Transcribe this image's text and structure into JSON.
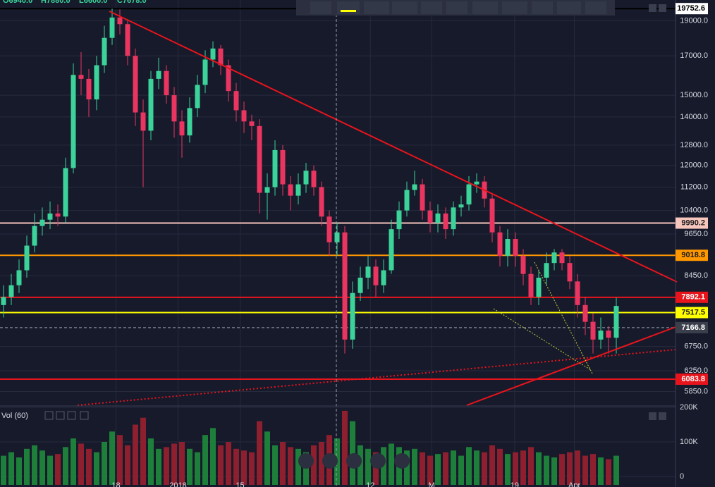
{
  "chart_data": {
    "type": "candlestick",
    "ohlc_legend": [
      "O6940.0",
      "H7880.0",
      "L6600.0",
      "C7678.0"
    ],
    "volume_label": "Vol (60)",
    "up_color": "#3cd39a",
    "down_color": "#ea3560",
    "volume_up_color": "#1d7f3a",
    "volume_down_color": "#8e1f2e",
    "ylim": [
      5600,
      20300
    ],
    "log_scale": true,
    "grid": true,
    "yticks": [
      {
        "value": 5850,
        "label": "5850.0"
      },
      {
        "value": 6250,
        "label": "6250.0"
      },
      {
        "value": 6750,
        "label": "6750.0"
      },
      {
        "value": 8450,
        "label": "8450.0"
      },
      {
        "value": 9650,
        "label": "9650.0"
      },
      {
        "value": 10400,
        "label": "10400.0"
      },
      {
        "value": 11200,
        "label": "11200.0"
      },
      {
        "value": 12000,
        "label": "12000.0"
      },
      {
        "value": 12800,
        "label": "12800.0"
      },
      {
        "value": 14000,
        "label": "14000.0"
      },
      {
        "value": 15000,
        "label": "15000.0"
      },
      {
        "value": 17000,
        "label": "17000.0"
      },
      {
        "value": 19000,
        "label": "19000.0"
      }
    ],
    "levels": [
      {
        "value": 19752.6,
        "color": "#000000",
        "text_color": "#000000",
        "label_bg": "#ffffff"
      },
      {
        "value": 9990.2,
        "color": "#f6c6bc",
        "text_color": "#1a1a1a",
        "label_bg": "#f6c6bc"
      },
      {
        "value": 9018.8,
        "color": "#ff9800",
        "text_color": "#1a1a1a",
        "label_bg": "#ff9800"
      },
      {
        "value": 7892.1,
        "color": "#e8141c",
        "text_color": "#ffffff",
        "label_bg": "#e8141c"
      },
      {
        "value": 7517.5,
        "color": "#ffff00",
        "text_color": "#1a1a1a",
        "label_bg": "#ffff00"
      },
      {
        "value": 7166.8,
        "color": "#9aa0ad",
        "text_color": "#ffffff",
        "label_bg": "#3b3f4c",
        "dashed": true
      },
      {
        "value": 6083.8,
        "color": "#e8141c",
        "text_color": "#ffffff",
        "label_bg": "#e8141c"
      }
    ],
    "xticks": [
      {
        "value": 14.5,
        "label": "18"
      },
      {
        "value": 22.5,
        "label": "2018"
      },
      {
        "value": 30.5,
        "label": "15"
      },
      {
        "value": 47.3,
        "label": "12"
      },
      {
        "value": 55.2,
        "label": "M"
      },
      {
        "value": 65.9,
        "label": "19"
      },
      {
        "value": 73.6,
        "label": "Apr"
      }
    ],
    "open": [
      7700,
      7900,
      8200,
      8600,
      9300,
      9900,
      10100,
      10300,
      10200,
      11900,
      16000,
      15800,
      14800,
      16500,
      18000,
      19200,
      18800,
      17000,
      14200,
      13400,
      15800,
      16200,
      15000,
      13800,
      13200,
      14400,
      15500,
      16800,
      17400,
      16500,
      15200,
      14300,
      13800,
      13600,
      11000,
      11200,
      12600,
      11300,
      10900,
      11300,
      11800,
      11200,
      10200,
      9400,
      9700,
      6900,
      8000,
      8400,
      8700,
      8200,
      8600,
      9800,
      10400,
      11100,
      11300,
      10400,
      10000,
      10300,
      9800,
      10500,
      10600,
      11300,
      11400,
      10800,
      9700,
      9000,
      9500,
      9000,
      8500,
      7900,
      8400,
      8800,
      9100,
      8800,
      8300,
      7700,
      7300,
      6900,
      7100,
      6940
    ],
    "high": [
      8200,
      8500,
      8900,
      9600,
      10300,
      10500,
      10700,
      10600,
      12300,
      16600,
      17200,
      16300,
      17000,
      18700,
      19753,
      19700,
      19000,
      17400,
      14800,
      16200,
      16900,
      16500,
      15400,
      14300,
      14900,
      16000,
      17300,
      17800,
      17600,
      16800,
      15600,
      14700,
      14100,
      13900,
      11700,
      13000,
      12800,
      11600,
      11700,
      12100,
      12000,
      11400,
      10400,
      10000,
      9900,
      8300,
      8700,
      9000,
      8900,
      8900,
      10100,
      10700,
      11400,
      11800,
      11500,
      10700,
      10600,
      10500,
      10700,
      10900,
      11600,
      11700,
      11600,
      11000,
      9900,
      9800,
      9700,
      9200,
      8700,
      8600,
      9100,
      9200,
      9200,
      9000,
      8500,
      7900,
      7500,
      7400,
      7200,
      7880
    ],
    "low": [
      7400,
      7700,
      8000,
      8400,
      9100,
      9600,
      9800,
      9900,
      10000,
      11700,
      15000,
      14000,
      14300,
      16100,
      17600,
      18200,
      16500,
      13600,
      11200,
      13000,
      15300,
      14600,
      13100,
      12300,
      12900,
      14000,
      15100,
      16400,
      16000,
      14700,
      13800,
      13300,
      13000,
      10300,
      10100,
      10900,
      10900,
      10400,
      10600,
      11000,
      10900,
      9900,
      9000,
      9000,
      6600,
      6700,
      7800,
      8100,
      7900,
      8000,
      8500,
      9500,
      10200,
      10900,
      10100,
      9700,
      9700,
      9500,
      9600,
      10200,
      10400,
      11000,
      10500,
      9400,
      8700,
      8700,
      8700,
      8200,
      7700,
      7700,
      8200,
      8600,
      8600,
      8100,
      7400,
      7000,
      6600,
      6700,
      6600,
      6600
    ],
    "close": [
      7900,
      8200,
      8600,
      9300,
      9900,
      10100,
      10300,
      10200,
      11900,
      16000,
      15800,
      14800,
      16500,
      18000,
      19200,
      18800,
      17000,
      14200,
      13400,
      15800,
      16200,
      15000,
      13800,
      13200,
      14400,
      15500,
      16800,
      17400,
      16500,
      15200,
      14300,
      13800,
      13600,
      11000,
      11200,
      12600,
      11300,
      10900,
      11300,
      11800,
      11200,
      10200,
      9400,
      9700,
      6900,
      8000,
      8400,
      8700,
      8200,
      8600,
      9800,
      10400,
      11100,
      11300,
      10400,
      10000,
      10300,
      9800,
      10500,
      10600,
      11300,
      11400,
      10800,
      9700,
      9000,
      9500,
      9000,
      8500,
      7900,
      8400,
      8800,
      9100,
      8800,
      8300,
      7700,
      7300,
      6900,
      7100,
      6940,
      7678
    ],
    "volume": [
      60000,
      70000,
      55000,
      80000,
      90000,
      75000,
      60000,
      65000,
      85000,
      110000,
      95000,
      80000,
      70000,
      100000,
      130000,
      120000,
      90000,
      150000,
      170000,
      110000,
      80000,
      85000,
      95000,
      100000,
      80000,
      70000,
      120000,
      140000,
      90000,
      100000,
      80000,
      75000,
      70000,
      160000,
      130000,
      90000,
      100000,
      85000,
      80000,
      70000,
      90000,
      100000,
      120000,
      110000,
      190000,
      160000,
      90000,
      80000,
      70000,
      85000,
      95000,
      85000,
      75000,
      80000,
      70000,
      60000,
      65000,
      70000,
      75000,
      60000,
      85000,
      75000,
      70000,
      90000,
      80000,
      65000,
      70000,
      75000,
      85000,
      70000,
      60000,
      55000,
      65000,
      70000,
      75000,
      60000,
      65000,
      55000,
      50000,
      60000
    ],
    "volume_ylim": [
      0,
      200000
    ],
    "volume_ticks": [
      {
        "value": 0,
        "label": "0"
      },
      {
        "value": 100000,
        "label": "100K"
      },
      {
        "value": 200000,
        "label": "200K"
      }
    ]
  }
}
